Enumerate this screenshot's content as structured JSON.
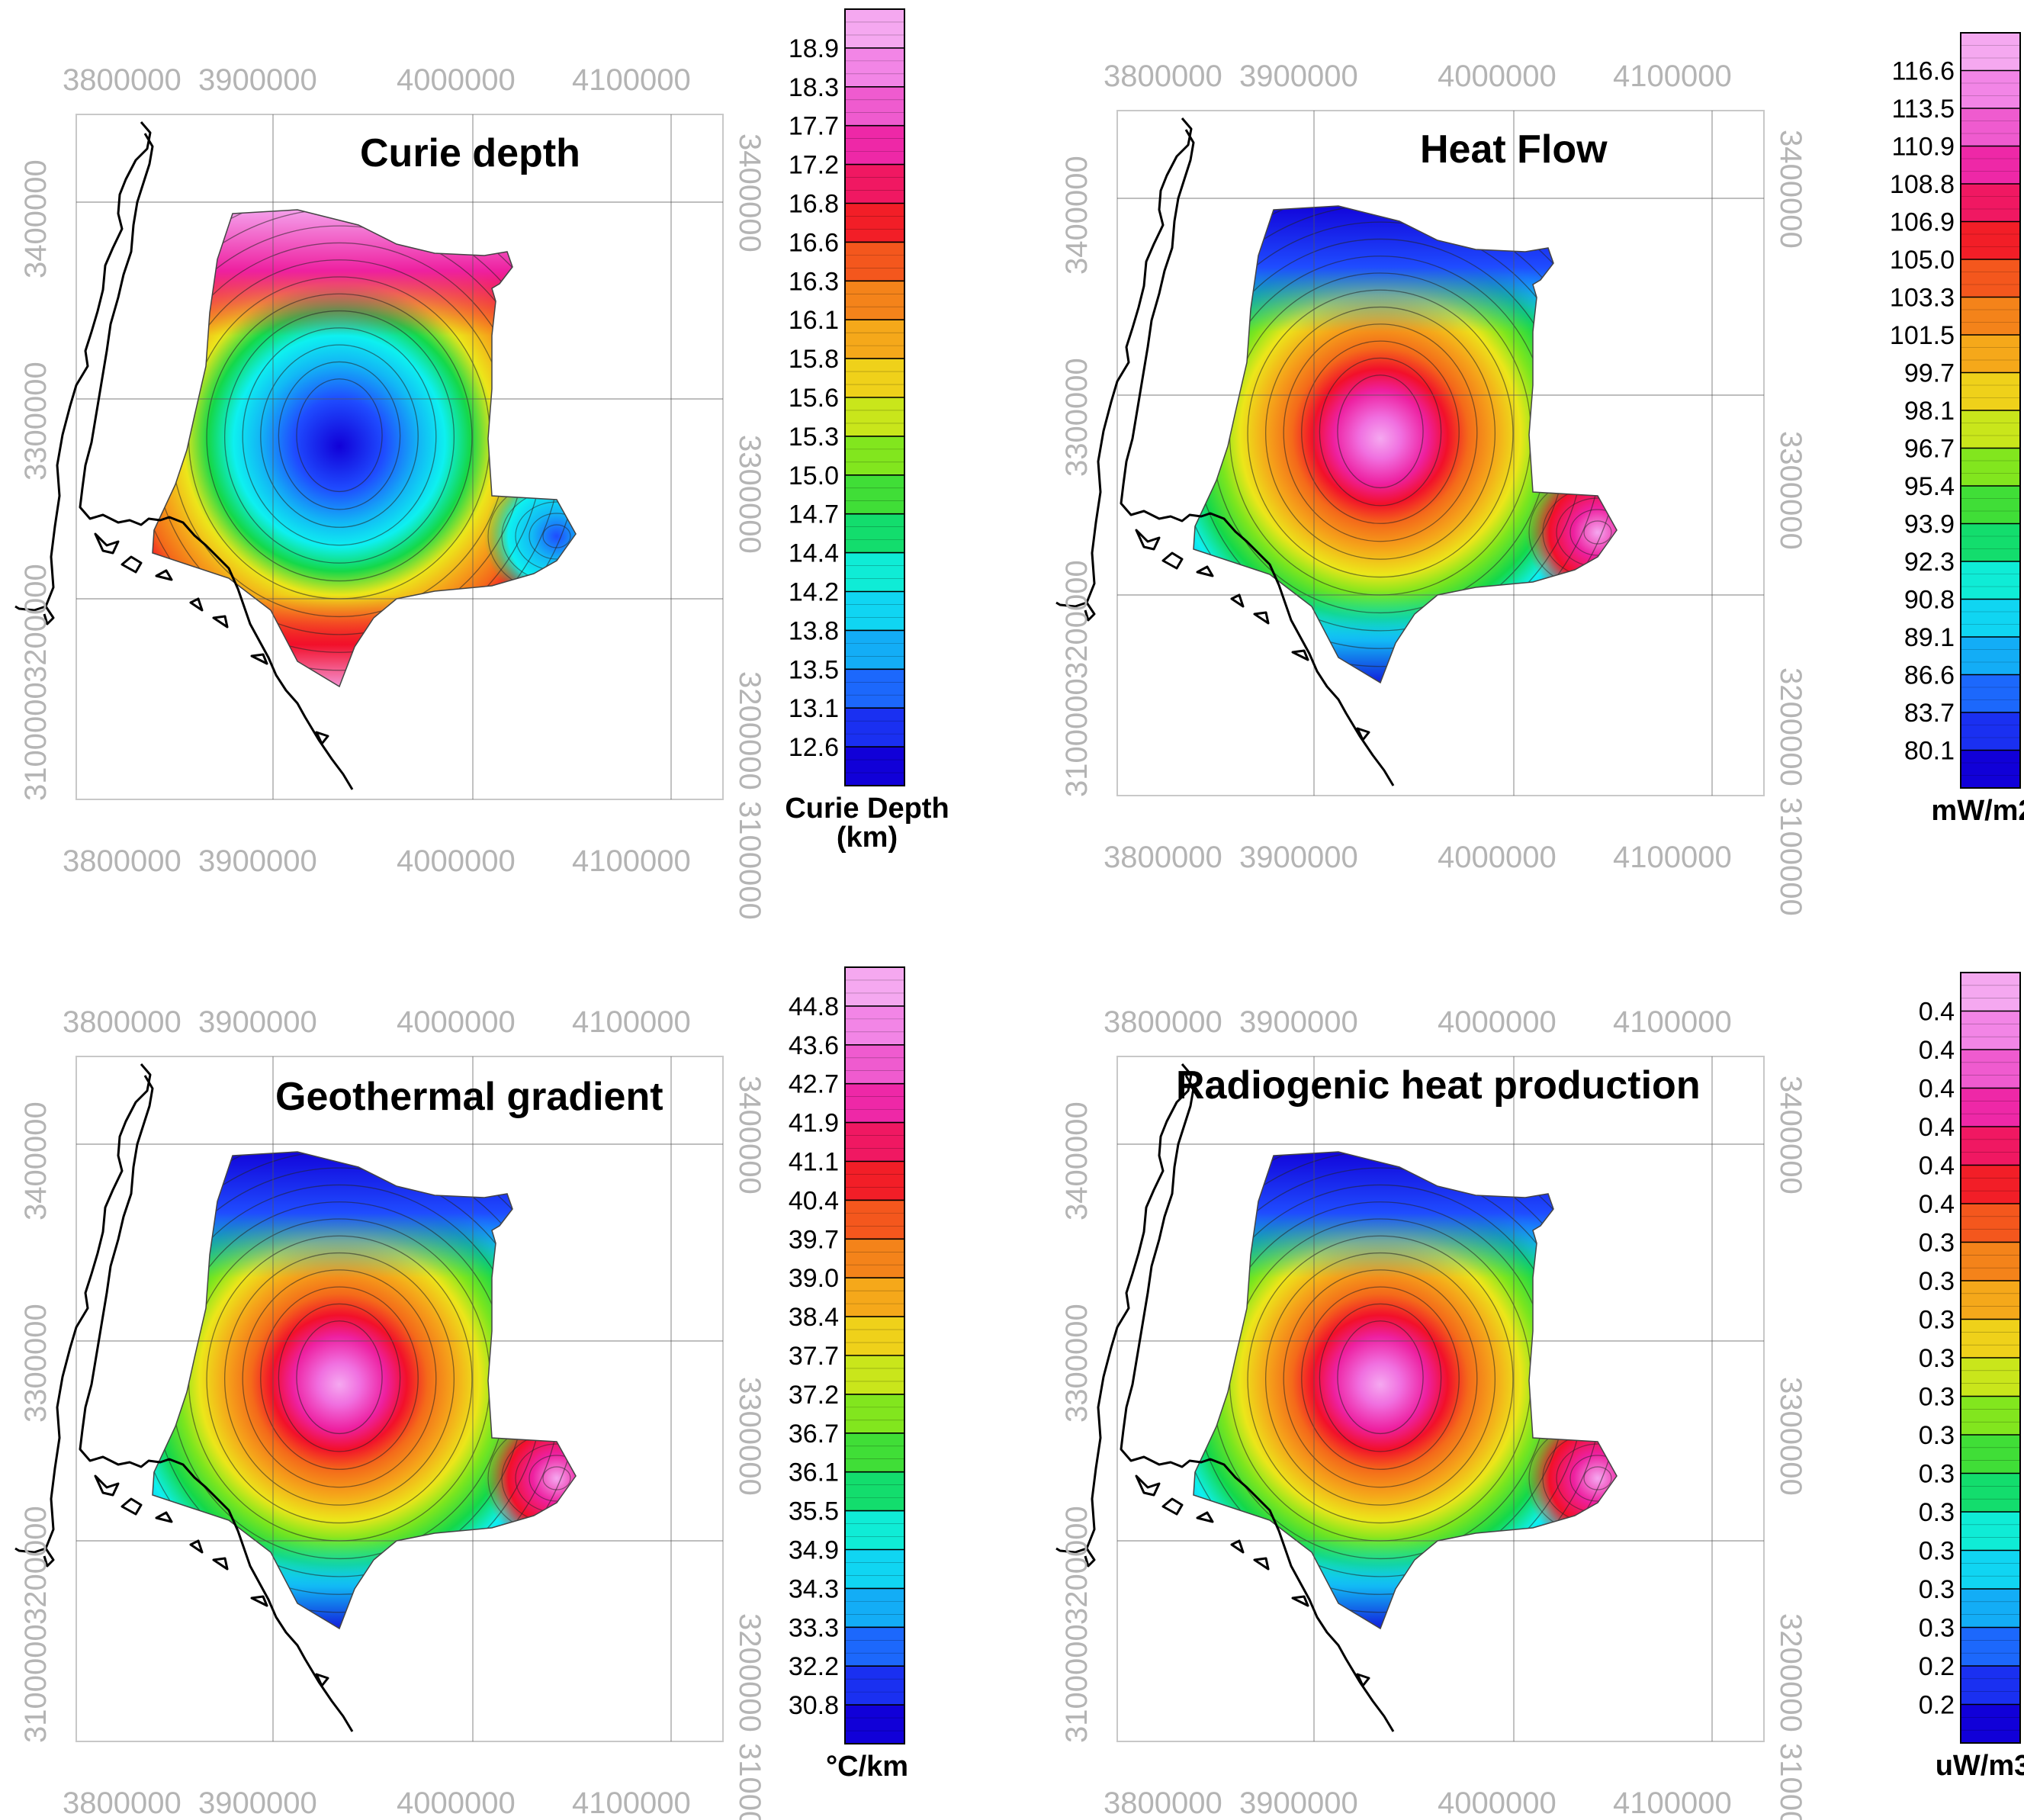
{
  "figure": {
    "x_tick_labels": [
      "3800000",
      "3900000",
      "4000000",
      "4100000"
    ],
    "y_tick_labels": [
      "3100000",
      "3200000",
      "3300000",
      "3400000"
    ],
    "colors": {
      "ramp": [
        "#1100d8",
        "#1f4cff",
        "#12b8f5",
        "#0ef0f0",
        "#14d84a",
        "#7ce61e",
        "#ece61a",
        "#f5a51a",
        "#f46a1a",
        "#f2102a",
        "#ee20a0",
        "#f070e0",
        "#f5a8f0"
      ],
      "tick_text": "#b4b4b4",
      "grid": "#555555",
      "coast": "#000000"
    }
  },
  "panels": [
    {
      "title": "Curie depth",
      "unit": [
        "Curie Depth",
        "(km)"
      ],
      "labels": [
        "18.9",
        "18.3",
        "17.7",
        "17.2",
        "16.8",
        "16.6",
        "16.3",
        "16.1",
        "15.8",
        "15.6",
        "15.3",
        "15.0",
        "14.7",
        "14.4",
        "14.2",
        "13.8",
        "13.5",
        "13.1",
        "12.6"
      ],
      "pattern": "curie",
      "extra_top_label": false
    },
    {
      "title": "Heat Flow",
      "unit": [
        "mW/m2"
      ],
      "labels": [
        "116.6",
        "113.5",
        "110.9",
        "108.8",
        "106.9",
        "105.0",
        "103.3",
        "101.5",
        "99.7",
        "98.1",
        "96.7",
        "95.4",
        "93.9",
        "92.3",
        "90.8",
        "89.1",
        "86.6",
        "83.7",
        "80.1"
      ],
      "pattern": "heat",
      "extra_top_label": false
    },
    {
      "title": "Geothermal gradient",
      "unit": [
        "°C/km"
      ],
      "labels": [
        "44.8",
        "43.6",
        "42.7",
        "41.9",
        "41.1",
        "40.4",
        "39.7",
        "39.0",
        "38.4",
        "37.7",
        "37.2",
        "36.7",
        "36.1",
        "35.5",
        "34.9",
        "34.3",
        "33.3",
        "32.2",
        "30.8"
      ],
      "pattern": "heat",
      "extra_top_label": false
    },
    {
      "title": "Radiogenic heat production",
      "unit": [
        "uW/m3"
      ],
      "labels": [
        "0.4",
        "0.4",
        "0.4",
        "0.4",
        "0.4",
        "0.4",
        "0.3",
        "0.3",
        "0.3",
        "0.3",
        "0.3",
        "0.3",
        "0.3",
        "0.3",
        "0.3",
        "0.3",
        "0.3",
        "0.2",
        "0.2"
      ],
      "pattern": "heat",
      "extra_top_label": false
    }
  ]
}
